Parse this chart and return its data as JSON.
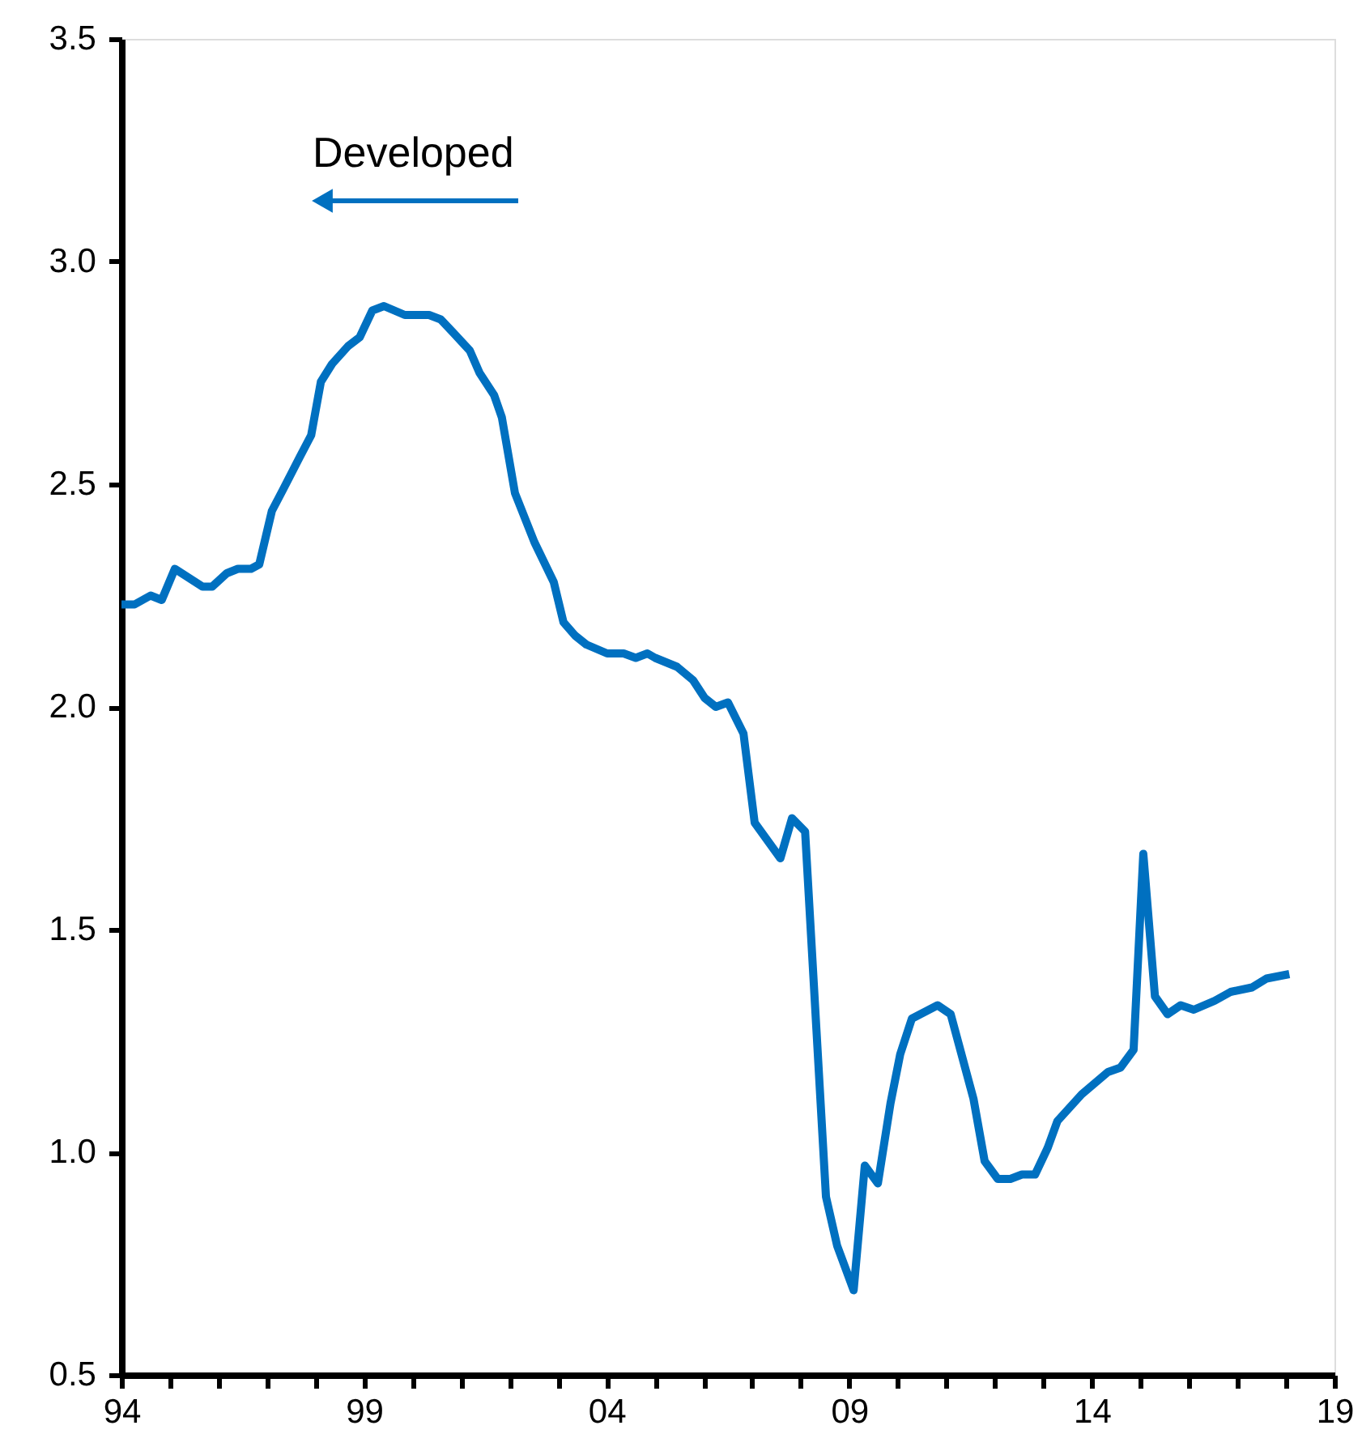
{
  "chart_data": {
    "type": "line",
    "annotations": [
      "Developed"
    ],
    "x": [
      1994.0,
      1994.27,
      1994.6,
      1994.83,
      1995.1,
      1995.67,
      1995.87,
      1996.17,
      1996.4,
      1996.67,
      1996.84,
      1997.1,
      1997.34,
      1997.67,
      1997.91,
      1998.11,
      1998.34,
      1998.67,
      1998.91,
      1999.17,
      1999.41,
      1999.84,
      2000.34,
      2000.58,
      2000.84,
      2001.18,
      2001.38,
      2001.68,
      2001.84,
      2002.11,
      2002.51,
      2002.91,
      2003.11,
      2003.35,
      2003.58,
      2004.01,
      2004.35,
      2004.6,
      2004.84,
      2005.0,
      2005.45,
      2005.78,
      2006.02,
      2006.25,
      2006.5,
      2006.82,
      2007.05,
      2007.58,
      2007.82,
      2008.09,
      2008.52,
      2008.75,
      2009.09,
      2009.32,
      2009.59,
      2009.85,
      2010.05,
      2010.29,
      2010.82,
      2011.09,
      2011.56,
      2011.79,
      2012.06,
      2012.32,
      2012.56,
      2012.83,
      2013.09,
      2013.29,
      2013.79,
      2014.33,
      2014.59,
      2014.86,
      2015.06,
      2015.3,
      2015.56,
      2015.83,
      2016.1,
      2016.53,
      2016.86,
      2017.3,
      2017.6,
      2018.07
    ],
    "series": [
      {
        "color": "#0070c0",
        "values": [
          2.23,
          2.23,
          2.25,
          2.24,
          2.31,
          2.27,
          2.27,
          2.3,
          2.31,
          2.31,
          2.32,
          2.44,
          2.49,
          2.56,
          2.61,
          2.73,
          2.77,
          2.81,
          2.83,
          2.89,
          2.9,
          2.88,
          2.88,
          2.87,
          2.84,
          2.8,
          2.75,
          2.7,
          2.65,
          2.48,
          2.37,
          2.28,
          2.19,
          2.16,
          2.14,
          2.12,
          2.12,
          2.11,
          2.12,
          2.11,
          2.09,
          2.06,
          2.02,
          2.0,
          2.01,
          1.94,
          1.74,
          1.66,
          1.75,
          1.72,
          0.9,
          0.79,
          0.69,
          0.97,
          0.93,
          1.11,
          1.22,
          1.3,
          1.33,
          1.31,
          1.12,
          0.98,
          0.94,
          0.94,
          0.95,
          0.95,
          1.01,
          1.07,
          1.13,
          1.18,
          1.19,
          1.23,
          1.67,
          1.35,
          1.31,
          1.33,
          1.32,
          1.34,
          1.36,
          1.37,
          1.39,
          1.4
        ]
      }
    ],
    "xlim": [
      1994,
      2019
    ],
    "xticks": [
      {
        "value": 1994,
        "label": "94"
      },
      {
        "value": 1995,
        "label": null
      },
      {
        "value": 1996,
        "label": null
      },
      {
        "value": 1997,
        "label": null
      },
      {
        "value": 1998,
        "label": null
      },
      {
        "value": 1999,
        "label": "99"
      },
      {
        "value": 2000,
        "label": null
      },
      {
        "value": 2001,
        "label": null
      },
      {
        "value": 2002,
        "label": null
      },
      {
        "value": 2003,
        "label": null
      },
      {
        "value": 2004,
        "label": "04"
      },
      {
        "value": 2005,
        "label": null
      },
      {
        "value": 2006,
        "label": null
      },
      {
        "value": 2007,
        "label": null
      },
      {
        "value": 2008,
        "label": null
      },
      {
        "value": 2009,
        "label": "09"
      },
      {
        "value": 2010,
        "label": null
      },
      {
        "value": 2011,
        "label": null
      },
      {
        "value": 2012,
        "label": null
      },
      {
        "value": 2013,
        "label": null
      },
      {
        "value": 2014,
        "label": "14"
      },
      {
        "value": 2015,
        "label": null
      },
      {
        "value": 2016,
        "label": null
      },
      {
        "value": 2017,
        "label": null
      },
      {
        "value": 2018,
        "label": null
      },
      {
        "value": 2019,
        "label": "19"
      }
    ],
    "ylim": [
      0.5,
      3.5
    ],
    "yticks": [
      0.5,
      {
        "value": 1,
        "label": "1.0"
      },
      1.5,
      {
        "value": 2,
        "label": "2.0"
      },
      2.5,
      {
        "value": 3,
        "label": "3.0"
      },
      3.5
    ],
    "grid": false,
    "marker": "none",
    "line_style": "solid"
  }
}
